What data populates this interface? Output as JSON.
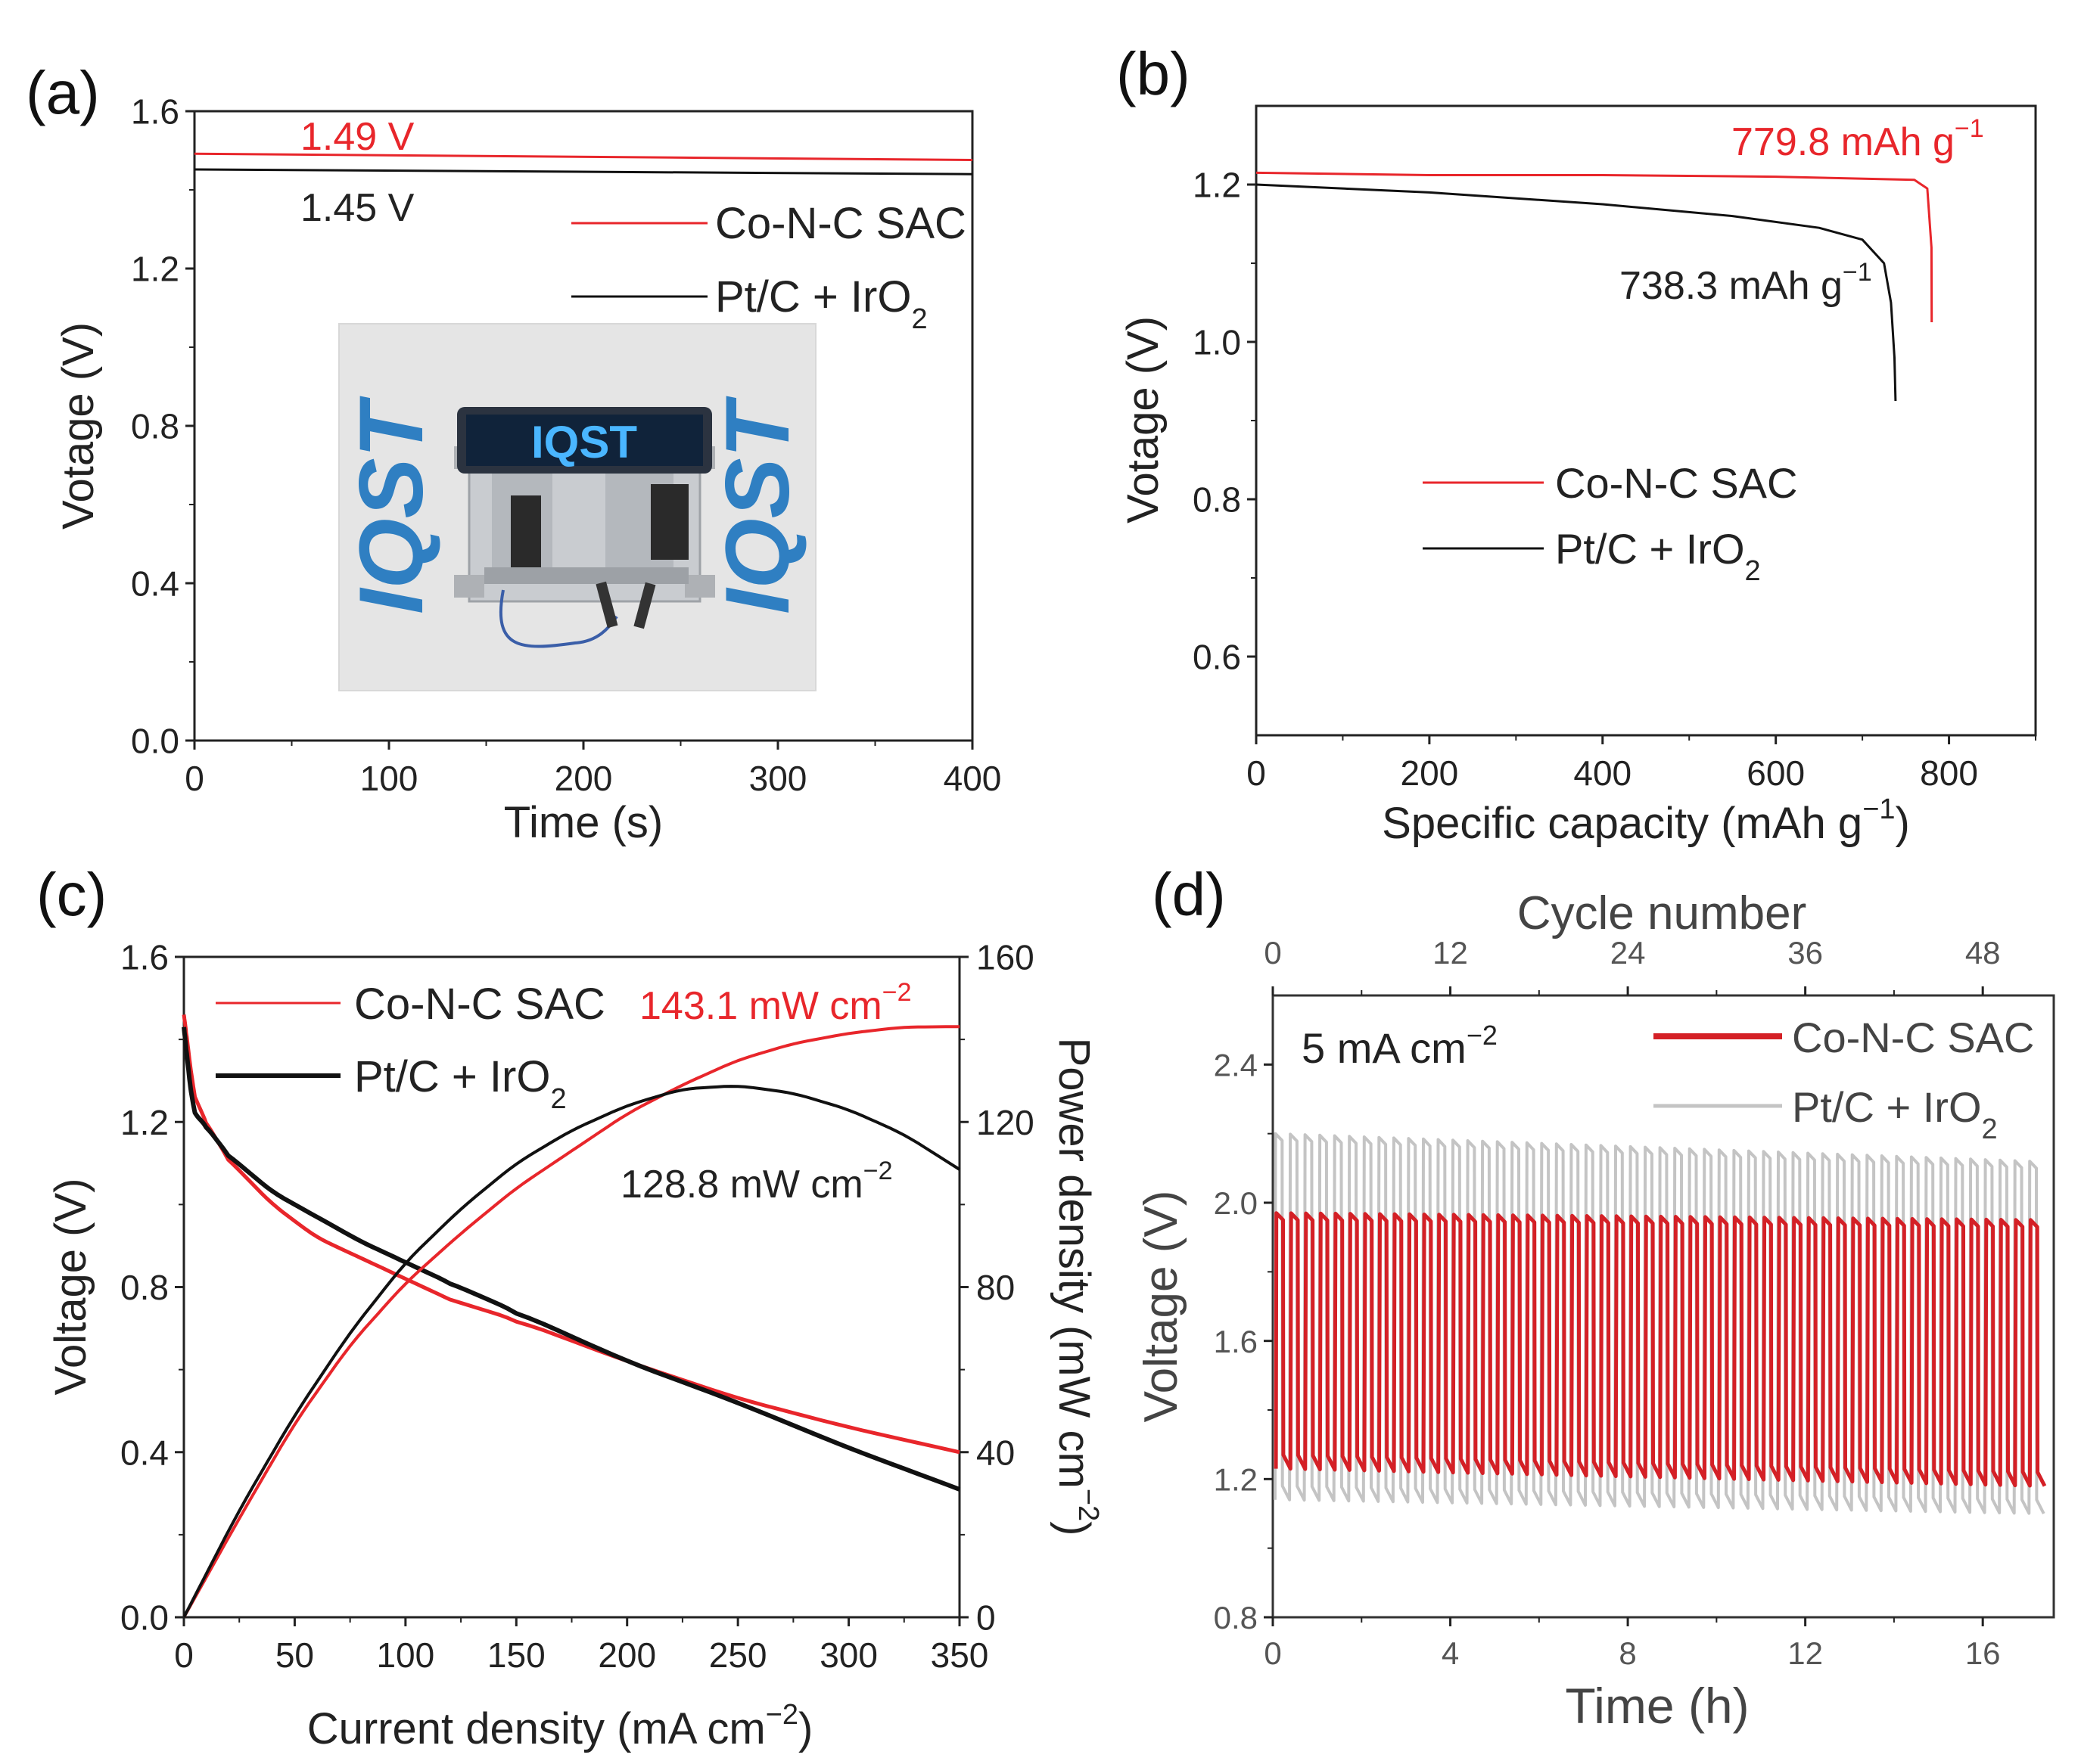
{
  "colors": {
    "red": "#e8262b",
    "black": "#111111",
    "gray": "#c4c4c4"
  },
  "chart_data": [
    {
      "panel": "(a)",
      "type": "line",
      "xlabel": "Time (s)",
      "ylabel": "Votage (V)",
      "xlim": [
        0,
        400
      ],
      "ylim": [
        0,
        1.6
      ],
      "xticks": [
        0,
        100,
        200,
        300,
        400
      ],
      "yticks": [
        0.0,
        0.4,
        0.8,
        1.2,
        1.6
      ],
      "ytick_labels": [
        "0.0",
        "0.4",
        "0.8",
        "1.2",
        "1.6"
      ],
      "series": [
        {
          "name": "Co-N-C SAC",
          "color": "#e8262b",
          "x": [
            0,
            400
          ],
          "y": [
            1.492,
            1.476
          ]
        },
        {
          "name": "Pt/C + IrO",
          "sub": "2",
          "color": "#111111",
          "x": [
            0,
            400
          ],
          "y": [
            1.452,
            1.44
          ]
        }
      ],
      "annotations": [
        {
          "text": "1.49 V",
          "color": "#e8262b"
        },
        {
          "text": "1.45 V",
          "color": "#111111"
        }
      ],
      "inset": {
        "display_text": "IQST",
        "logo_text": "IQST"
      }
    },
    {
      "panel": "(b)",
      "type": "line",
      "xlabel": "Specific capacity (mAh g",
      "xlabel_sup": "−1",
      "xlabel_end": ")",
      "ylabel": "Votage (V)",
      "xlim": [
        0,
        900
      ],
      "ylim": [
        0.5,
        1.3
      ],
      "xticks": [
        0,
        200,
        400,
        600,
        800
      ],
      "yticks": [
        0.6,
        0.8,
        1.0,
        1.2
      ],
      "ytick_labels": [
        "0.6",
        "0.8",
        "1.0",
        "1.2"
      ],
      "series": [
        {
          "name": "Co-N-C SAC",
          "color": "#e8262b",
          "x": [
            0,
            200,
            400,
            600,
            760,
            775,
            779.8,
            780
          ],
          "y": [
            1.215,
            1.212,
            1.212,
            1.21,
            1.206,
            1.195,
            1.12,
            1.025
          ]
        },
        {
          "name": "Pt/C + IrO",
          "sub": "2",
          "color": "#111111",
          "x": [
            0,
            200,
            400,
            550,
            650,
            700,
            725,
            733,
            737,
            738.3
          ],
          "y": [
            1.2,
            1.19,
            1.175,
            1.16,
            1.145,
            1.13,
            1.1,
            1.05,
            0.98,
            0.925
          ]
        }
      ],
      "annotations": [
        {
          "text": "779.8 mAh g",
          "sup": "−1",
          "color": "#e8262b"
        },
        {
          "text": "738.3 mAh g",
          "sup": "−1",
          "color": "#111111"
        }
      ]
    },
    {
      "panel": "(c)",
      "type": "line",
      "xlabel": "Current density (mA cm",
      "xlabel_sup": "−2",
      "xlabel_end": ")",
      "ylabel": "Voltage (V)",
      "y2label": "Power density (mW cm",
      "y2label_sup": "−2",
      "y2label_end": ")",
      "xlim": [
        0,
        350
      ],
      "ylim": [
        0,
        1.6
      ],
      "y2lim": [
        0,
        160
      ],
      "xticks": [
        0,
        50,
        100,
        150,
        200,
        250,
        300,
        350
      ],
      "yticks": [
        0.0,
        0.4,
        0.8,
        1.2,
        1.6
      ],
      "ytick_labels": [
        "0.0",
        "0.4",
        "0.8",
        "1.2",
        "1.6"
      ],
      "y2ticks": [
        0,
        40,
        80,
        120,
        160
      ],
      "series": [
        {
          "name": "Co-N-C SAC",
          "axis": "left",
          "color": "#e8262b",
          "x": [
            0,
            1,
            3,
            5,
            10,
            20,
            40,
            60,
            80,
            100,
            120,
            150,
            200,
            250,
            300,
            350
          ],
          "y": [
            1.46,
            1.42,
            1.33,
            1.26,
            1.2,
            1.11,
            1.0,
            0.92,
            0.87,
            0.82,
            0.77,
            0.72,
            0.62,
            0.53,
            0.46,
            0.4
          ]
        },
        {
          "name": "Pt/C + IrO",
          "sub": "2",
          "axis": "left",
          "color": "#111111",
          "x": [
            0,
            1,
            3,
            5,
            10,
            20,
            40,
            60,
            80,
            100,
            120,
            150,
            200,
            250,
            300,
            350
          ],
          "y": [
            1.43,
            1.38,
            1.28,
            1.22,
            1.19,
            1.12,
            1.03,
            0.97,
            0.91,
            0.86,
            0.81,
            0.74,
            0.62,
            0.52,
            0.41,
            0.31
          ]
        },
        {
          "name": "Co-N-C SAC power",
          "axis": "right",
          "color": "#e8262b",
          "x": [
            0,
            25,
            50,
            75,
            100,
            125,
            150,
            175,
            200,
            225,
            250,
            275,
            300,
            325,
            350
          ],
          "y": [
            0,
            24,
            47,
            66,
            81,
            93,
            104,
            113,
            122,
            129,
            135,
            139,
            141.5,
            143,
            143.1
          ]
        },
        {
          "name": "Pt/C + IrO2 power",
          "axis": "right",
          "color": "#111111",
          "x": [
            0,
            25,
            50,
            75,
            100,
            125,
            150,
            175,
            200,
            225,
            250,
            275,
            300,
            325,
            350
          ],
          "y": [
            0,
            26,
            49,
            69,
            86,
            99,
            110,
            118,
            124,
            128,
            128.8,
            127,
            123,
            117,
            108.5
          ]
        }
      ],
      "annotations": [
        {
          "text": "143.1 mW cm",
          "sup": "−2",
          "color": "#e8262b"
        },
        {
          "text": "128.8 mW cm",
          "sup": "−2",
          "color": "#111111"
        }
      ]
    },
    {
      "panel": "(d)",
      "type": "line",
      "xlabel": "Time (h)",
      "ylabel": "Voltage (V)",
      "x2label": "Cycle number",
      "xlim": [
        0,
        17.6
      ],
      "ylim": [
        0.8,
        2.6
      ],
      "x2lim": [
        0,
        52.8
      ],
      "xticks": [
        0,
        4,
        8,
        12,
        16
      ],
      "x2ticks": [
        0,
        12,
        24,
        36,
        48
      ],
      "yticks": [
        0.8,
        1.2,
        1.6,
        2.0,
        2.4
      ],
      "ytick_labels": [
        "0.8",
        "1.2",
        "1.6",
        "2.0",
        "2.4"
      ],
      "cycle_period_h": 0.3333,
      "series": [
        {
          "name": "Pt/C + IrO",
          "sub": "2",
          "color": "#c4c4c4",
          "cycles": 52,
          "charge_start": 2.2,
          "charge_end": 2.12,
          "discharge_start": 1.14,
          "discharge_end": 1.1
        },
        {
          "name": "Co-N-C SAC",
          "color": "#d42026",
          "cycles": 52,
          "charge_start": 1.97,
          "charge_end": 1.95,
          "discharge_start": 1.23,
          "discharge_end": 1.18
        }
      ],
      "annotations": [
        {
          "text": "5 mA cm",
          "sup": "−2",
          "color": "#111111"
        }
      ]
    }
  ]
}
